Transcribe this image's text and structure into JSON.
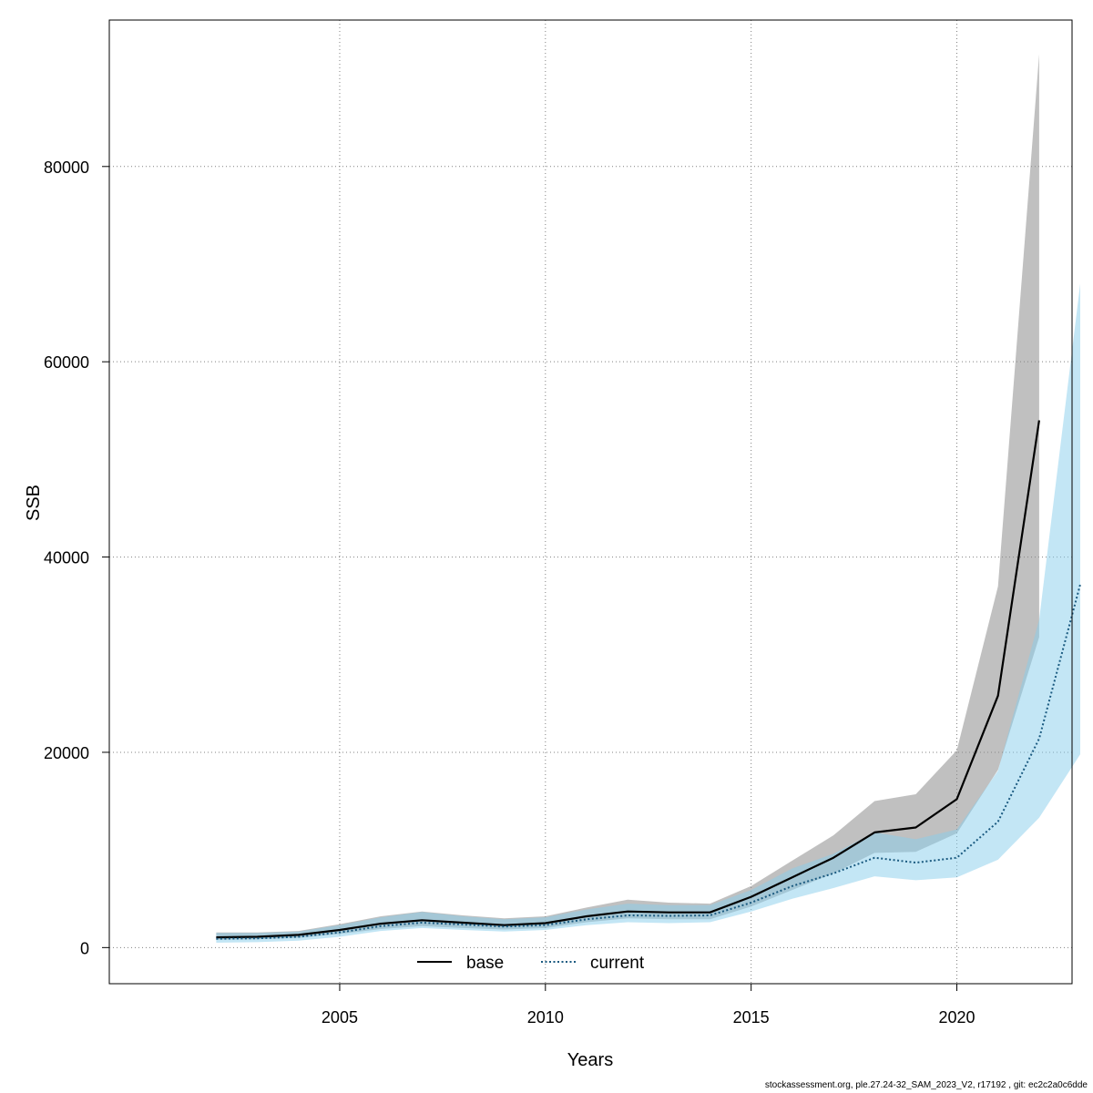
{
  "chart_data": {
    "type": "line",
    "xlabel": "Years",
    "ylabel": "SSB",
    "xlim": [
      1999.4,
      2022.8
    ],
    "ylim": [
      -3700,
      95000
    ],
    "xticks": [
      2005,
      2010,
      2015,
      2020
    ],
    "yticks": [
      0,
      20000,
      40000,
      60000,
      80000
    ],
    "grid": true,
    "legend_position": "bottom-center",
    "colors": {
      "base_line": "#000000",
      "base_band": "#8c8c8c",
      "current_line": "#1a5a80",
      "current_band": "#87ceeb",
      "grid": "#808080"
    },
    "series": [
      {
        "name": "base",
        "line_style": "solid",
        "x": [
          2002,
          2003,
          2004,
          2005,
          2006,
          2007,
          2008,
          2009,
          2010,
          2011,
          2012,
          2013,
          2014,
          2015,
          2016,
          2017,
          2018,
          2019,
          2020,
          2021,
          2022
        ],
        "values": [
          1050,
          1100,
          1300,
          1800,
          2450,
          2800,
          2550,
          2300,
          2500,
          3200,
          3700,
          3600,
          3600,
          5200,
          7200,
          9200,
          11800,
          12300,
          15200,
          25800,
          54000
        ],
        "lower": [
          800,
          850,
          1000,
          1400,
          1900,
          2200,
          2000,
          1850,
          2000,
          2600,
          3000,
          2900,
          2900,
          4200,
          5900,
          7600,
          9700,
          9800,
          11700,
          18200,
          31800
        ],
        "upper": [
          1550,
          1550,
          1700,
          2400,
          3200,
          3700,
          3300,
          3000,
          3200,
          4100,
          4900,
          4600,
          4500,
          6300,
          8900,
          11500,
          15000,
          15700,
          20200,
          37000,
          91500
        ]
      },
      {
        "name": "current",
        "line_style": "dotted",
        "x": [
          2002,
          2003,
          2004,
          2005,
          2006,
          2007,
          2008,
          2009,
          2010,
          2011,
          2012,
          2013,
          2014,
          2015,
          2016,
          2017,
          2018,
          2019,
          2020,
          2021,
          2022,
          2023
        ],
        "values": [
          900,
          950,
          1100,
          1550,
          2200,
          2550,
          2350,
          2150,
          2300,
          2900,
          3300,
          3250,
          3300,
          4600,
          6300,
          7600,
          9200,
          8700,
          9200,
          12900,
          21400,
          37200
        ],
        "lower": [
          500,
          550,
          700,
          1100,
          1700,
          2000,
          1800,
          1650,
          1800,
          2300,
          2600,
          2500,
          2600,
          3700,
          5000,
          6100,
          7300,
          6900,
          7200,
          9000,
          13300,
          19800
        ],
        "upper": [
          1500,
          1500,
          1650,
          2300,
          3100,
          3650,
          3200,
          2900,
          3100,
          3900,
          4500,
          4350,
          4350,
          5900,
          8100,
          9600,
          11800,
          11100,
          12100,
          18100,
          33600,
          68000
        ]
      }
    ]
  },
  "footer": {
    "text": "stockassessment.org, ple.27.24-32_SAM_2023_V2, r17192 , git: ec2c2a0c6dde"
  }
}
